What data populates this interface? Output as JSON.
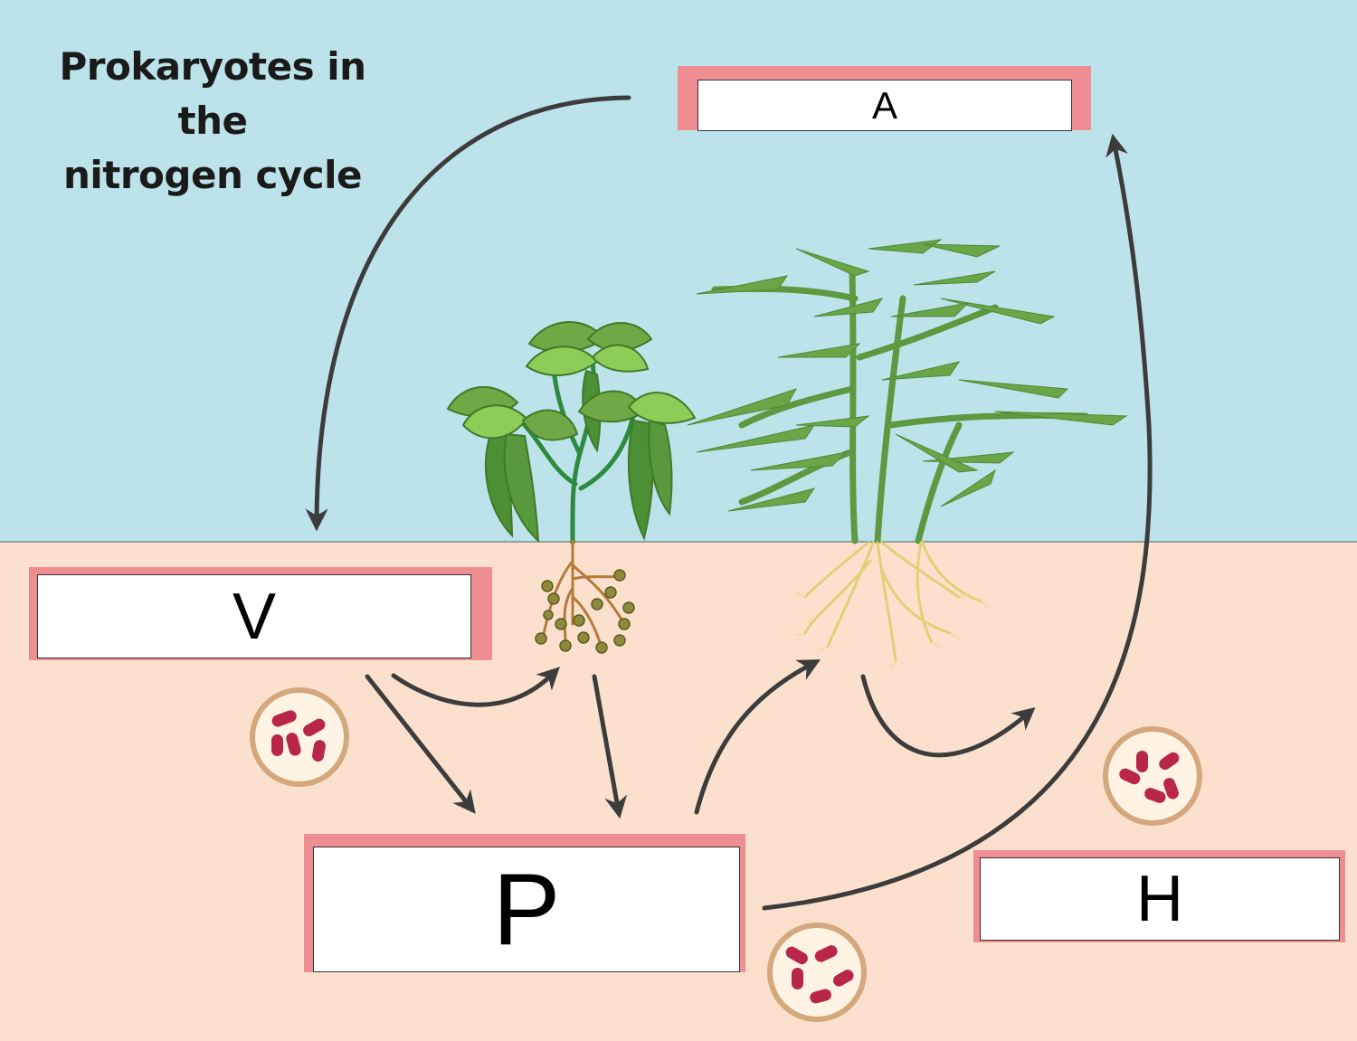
{
  "title": {
    "line1": "Prokaryotes in the",
    "line2": "nitrogen cycle"
  },
  "labels": {
    "a": "A",
    "v": "V",
    "p": "P",
    "h": "H"
  },
  "colors": {
    "sky": "#bde3ea",
    "soil": "#fbe1cd",
    "label_border": "#ee8d92",
    "arrow": "#3c3c3c",
    "bacteria_fill": "#b8264a",
    "bacteria_circle": "#d4a77c"
  }
}
